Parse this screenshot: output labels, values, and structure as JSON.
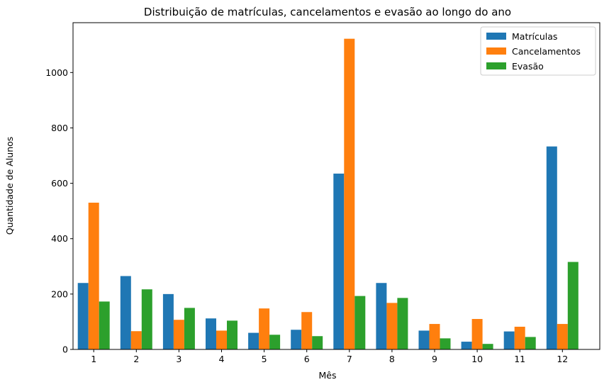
{
  "chart_data": {
    "type": "bar",
    "title": "Distribuição de matrículas, cancelamentos e evasão ao longo do ano",
    "xlabel": "Mês",
    "ylabel": "Quantidade de Alunos",
    "categories": [
      "1",
      "2",
      "3",
      "4",
      "5",
      "6",
      "7",
      "8",
      "9",
      "10",
      "11",
      "12"
    ],
    "ylim": [
      0,
      1180
    ],
    "yticks": [
      0,
      200,
      400,
      600,
      800,
      1000
    ],
    "grid": false,
    "legend_position": "top-right",
    "series": [
      {
        "name": "Matrículas",
        "color": "#1f77b4",
        "values": [
          240,
          265,
          200,
          112,
          60,
          71,
          635,
          240,
          68,
          28,
          65,
          733
        ]
      },
      {
        "name": "Cancelamentos",
        "color": "#ff7f0e",
        "values": [
          530,
          66,
          107,
          68,
          148,
          135,
          1122,
          168,
          92,
          110,
          82,
          92
        ]
      },
      {
        "name": "Evasão",
        "color": "#2ca02c",
        "values": [
          173,
          217,
          150,
          104,
          53,
          48,
          193,
          186,
          40,
          20,
          45,
          316
        ]
      }
    ]
  }
}
